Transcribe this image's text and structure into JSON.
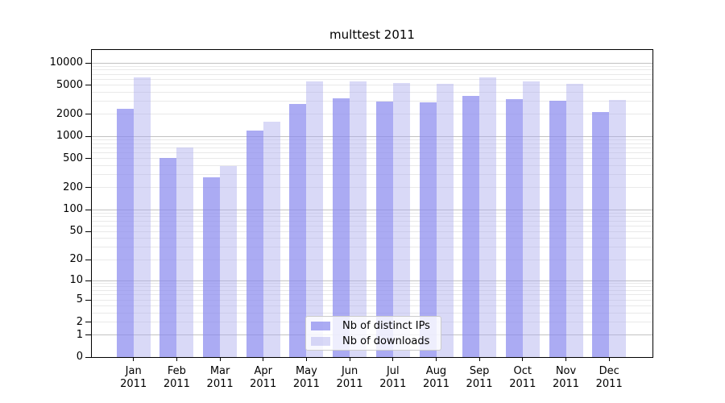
{
  "figure": {
    "title": "multtest 2011"
  },
  "chart_data": {
    "type": "bar",
    "title": "multtest 2011",
    "categories": [
      "Jan",
      "Feb",
      "Mar",
      "Apr",
      "May",
      "Jun",
      "Jul",
      "Aug",
      "Sep",
      "Oct",
      "Nov",
      "Dec"
    ],
    "year": "2011",
    "series": [
      {
        "name": "Nb of distinct IPs",
        "color": "rgba(136,136,238,0.70)",
        "values": [
          2400,
          510,
          276,
          1210,
          2750,
          3300,
          2960,
          2890,
          3550,
          3220,
          3040,
          2150
        ]
      },
      {
        "name": "Nb of downloads",
        "color": "rgba(170,170,238,0.45)",
        "values": [
          6400,
          710,
          397,
          1580,
          5580,
          5670,
          5300,
          5160,
          6350,
          5620,
          5130,
          3120
        ]
      }
    ],
    "yticks": [
      0,
      1,
      2,
      5,
      10,
      20,
      50,
      100,
      200,
      500,
      1000,
      2000,
      5000,
      10000
    ],
    "yscale": "log10(1+v)",
    "ylim": [
      0,
      15500
    ],
    "xlabel": "",
    "ylabel": "",
    "grid": {
      "major_color": "#c2c2c2",
      "minor_color": "#e9e9e9",
      "enabled": true
    },
    "legend": {
      "position": "lower center"
    }
  }
}
